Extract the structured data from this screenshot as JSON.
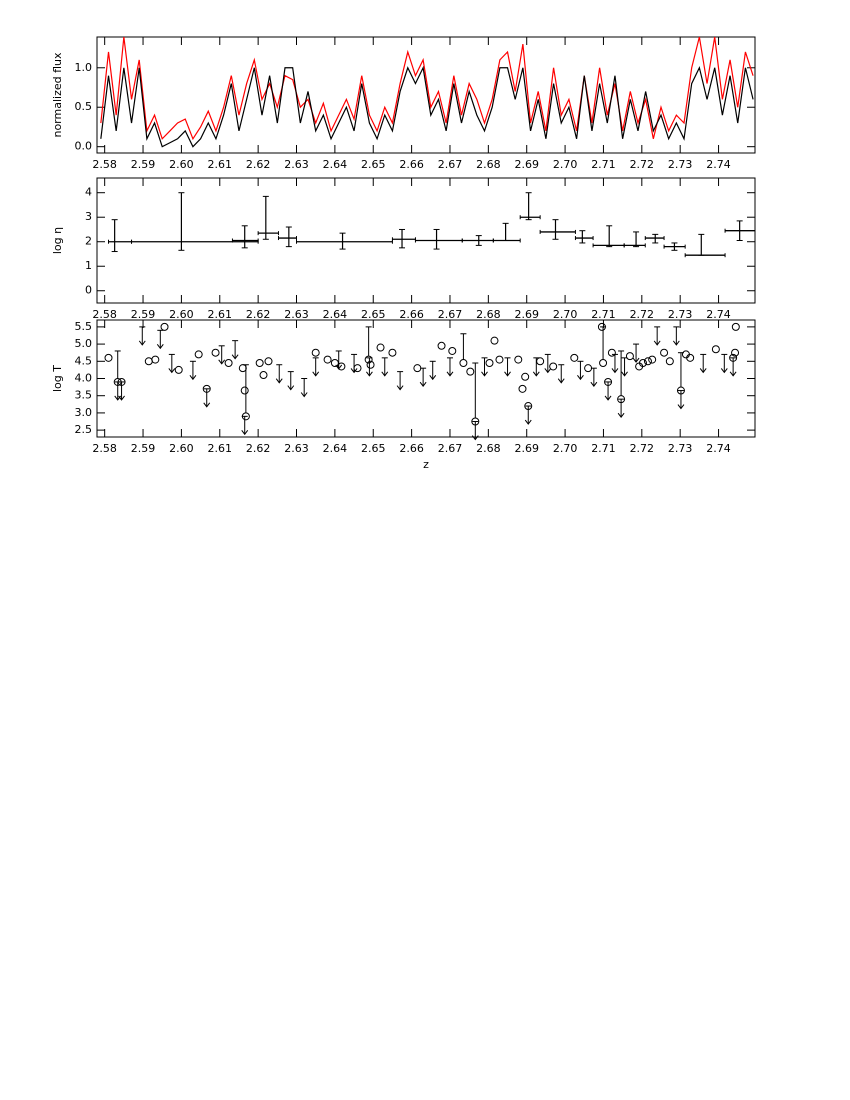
{
  "chart_data": [
    {
      "type": "line",
      "ylabel": "normalized flux",
      "x": [
        2.579,
        2.581,
        2.583,
        2.585,
        2.587,
        2.589,
        2.591,
        2.593,
        2.595,
        2.597,
        2.599,
        2.601,
        2.603,
        2.605,
        2.607,
        2.609,
        2.611,
        2.613,
        2.615,
        2.617,
        2.619,
        2.621,
        2.623,
        2.625,
        2.627,
        2.629,
        2.631,
        2.633,
        2.635,
        2.637,
        2.639,
        2.641,
        2.643,
        2.645,
        2.647,
        2.649,
        2.651,
        2.653,
        2.655,
        2.657,
        2.659,
        2.661,
        2.663,
        2.665,
        2.667,
        2.669,
        2.671,
        2.673,
        2.675,
        2.677,
        2.679,
        2.681,
        2.683,
        2.685,
        2.687,
        2.689,
        2.691,
        2.693,
        2.695,
        2.697,
        2.699,
        2.701,
        2.703,
        2.705,
        2.707,
        2.709,
        2.711,
        2.713,
        2.715,
        2.717,
        2.719,
        2.721,
        2.723,
        2.725,
        2.727,
        2.729,
        2.731,
        2.733,
        2.735,
        2.737,
        2.739,
        2.741,
        2.743,
        2.745,
        2.747,
        2.749
      ],
      "series": [
        {
          "color": "#ff0000",
          "values": [
            0.3,
            1.2,
            0.4,
            1.39,
            0.6,
            1.1,
            0.2,
            0.4,
            0.1,
            0.2,
            0.3,
            0.35,
            0.1,
            0.25,
            0.45,
            0.2,
            0.5,
            0.9,
            0.4,
            0.8,
            1.1,
            0.6,
            0.8,
            0.5,
            0.9,
            0.85,
            0.5,
            0.6,
            0.3,
            0.55,
            0.2,
            0.4,
            0.6,
            0.35,
            0.9,
            0.4,
            0.2,
            0.5,
            0.3,
            0.8,
            1.2,
            0.9,
            1.1,
            0.5,
            0.7,
            0.3,
            0.9,
            0.4,
            0.8,
            0.6,
            0.3,
            0.6,
            1.1,
            1.2,
            0.7,
            1.3,
            0.3,
            0.7,
            0.2,
            1.0,
            0.4,
            0.6,
            0.2,
            0.9,
            0.3,
            1.0,
            0.4,
            0.8,
            0.2,
            0.7,
            0.3,
            0.6,
            0.1,
            0.5,
            0.2,
            0.4,
            0.3,
            1.0,
            1.39,
            0.8,
            1.39,
            0.6,
            1.1,
            0.5,
            1.2,
            0.9
          ]
        },
        {
          "color": "#000000",
          "values": [
            0.1,
            0.9,
            0.2,
            1.0,
            0.3,
            1.0,
            0.1,
            0.3,
            0.0,
            0.05,
            0.1,
            0.2,
            0.0,
            0.1,
            0.3,
            0.1,
            0.4,
            0.8,
            0.2,
            0.6,
            1.0,
            0.4,
            0.9,
            0.3,
            1.0,
            1.0,
            0.3,
            0.7,
            0.2,
            0.4,
            0.1,
            0.3,
            0.5,
            0.2,
            0.8,
            0.3,
            0.1,
            0.4,
            0.2,
            0.7,
            1.0,
            0.8,
            1.0,
            0.4,
            0.6,
            0.2,
            0.8,
            0.3,
            0.7,
            0.4,
            0.2,
            0.5,
            1.0,
            1.0,
            0.6,
            1.0,
            0.2,
            0.6,
            0.1,
            0.8,
            0.3,
            0.5,
            0.1,
            0.9,
            0.2,
            0.8,
            0.3,
            0.9,
            0.1,
            0.6,
            0.2,
            0.7,
            0.2,
            0.4,
            0.1,
            0.3,
            0.1,
            0.8,
            1.0,
            0.6,
            1.0,
            0.4,
            0.9,
            0.3,
            1.0,
            0.6
          ]
        }
      ],
      "xlim": [
        2.578,
        2.7495
      ],
      "xticks": [
        2.58,
        2.59,
        {
          "value": 2.6,
          "label": "2.60"
        },
        2.61,
        2.62,
        2.63,
        2.64,
        2.65,
        2.66,
        2.67,
        2.68,
        2.69,
        {
          "value": 2.7,
          "label": "2.70"
        },
        2.71,
        2.72,
        2.73,
        2.74
      ],
      "ylim": [
        -0.08,
        1.39
      ],
      "yticks": [
        {
          "value": 0,
          "label": "0.0"
        },
        0.5,
        {
          "value": 1,
          "label": "1.0"
        }
      ]
    },
    {
      "type": "errorbar",
      "ylabel": "log η",
      "x": [
        2.5826,
        2.6,
        2.6165,
        2.622,
        2.628,
        2.642,
        2.6575,
        2.6665,
        2.6775,
        2.6845,
        2.6905,
        2.6975,
        2.7045,
        2.7115,
        2.7185,
        2.7235,
        2.7285,
        2.7355,
        2.7455
      ],
      "values": [
        2.0,
        2.0,
        2.05,
        2.35,
        2.15,
        2.0,
        2.1,
        2.05,
        2.05,
        2.05,
        3.0,
        2.4,
        2.15,
        1.85,
        1.85,
        2.15,
        1.8,
        1.45,
        2.45
      ],
      "x_lower": [
        2.581,
        2.587,
        2.6133,
        2.62,
        2.6253,
        2.63,
        2.655,
        2.661,
        2.6732,
        2.6813,
        2.6883,
        2.6935,
        2.7027,
        2.7073,
        2.7154,
        2.7209,
        2.7258,
        2.7313,
        2.7417
      ],
      "x_upper": [
        2.587,
        2.62,
        2.62,
        2.6253,
        2.63,
        2.655,
        2.661,
        2.6732,
        2.6813,
        2.6883,
        2.6935,
        2.7027,
        2.7073,
        2.7154,
        2.7209,
        2.7258,
        2.7313,
        2.7417,
        2.7495
      ],
      "y_lower": [
        1.6,
        1.65,
        1.75,
        2.1,
        1.8,
        1.7,
        1.75,
        1.7,
        1.85,
        2.05,
        2.9,
        2.1,
        1.95,
        1.8,
        1.8,
        1.95,
        1.65,
        1.45,
        2.05
      ],
      "y_upper": [
        2.9,
        4.0,
        2.65,
        3.85,
        2.6,
        2.35,
        2.5,
        2.5,
        2.25,
        2.75,
        4.0,
        2.9,
        2.45,
        2.65,
        2.4,
        2.3,
        1.95,
        2.3,
        2.85
      ],
      "xlim": [
        2.578,
        2.7495
      ],
      "xticks": [
        2.58,
        2.59,
        {
          "value": 2.6,
          "label": "2.60"
        },
        2.61,
        2.62,
        2.63,
        2.64,
        2.65,
        2.66,
        2.67,
        2.68,
        2.69,
        {
          "value": 2.7,
          "label": "2.70"
        },
        2.71,
        2.72,
        2.73,
        2.74
      ],
      "ylim": [
        -0.5,
        4.6
      ],
      "yticks": [
        0,
        1,
        2,
        3,
        4
      ]
    },
    {
      "type": "scatter",
      "ylabel": "log T",
      "xlabel": "z",
      "x": [
        2.581,
        2.5834,
        2.5844,
        2.5915,
        2.5932,
        2.5956,
        2.5993,
        2.6045,
        2.6066,
        2.6089,
        2.6123,
        2.616,
        2.6165,
        2.6168,
        2.6204,
        2.6214,
        2.6227,
        2.635,
        2.6381,
        2.64,
        2.6417,
        2.6459,
        2.6488,
        2.6493,
        2.6519,
        2.655,
        2.6615,
        2.6678,
        2.6706,
        2.6735,
        2.6753,
        2.6766,
        2.6803,
        2.6816,
        2.6829,
        2.6878,
        2.6889,
        2.6896,
        2.6904,
        2.6935,
        2.6969,
        2.7024,
        2.706,
        2.7096,
        2.7099,
        2.7112,
        2.7122,
        2.7146,
        2.7169,
        2.7193,
        2.7203,
        2.7216,
        2.7227,
        2.7258,
        2.7273,
        2.7302,
        2.7315,
        2.7326,
        2.7393,
        2.7438,
        2.7443,
        2.7445
      ],
      "values": [
        4.6,
        3.9,
        3.9,
        4.5,
        4.55,
        5.5,
        4.25,
        4.7,
        3.7,
        4.75,
        4.45,
        4.3,
        3.65,
        2.9,
        4.45,
        4.1,
        4.5,
        4.75,
        4.55,
        4.45,
        4.35,
        4.3,
        4.55,
        4.4,
        4.9,
        4.75,
        4.3,
        4.95,
        4.8,
        4.45,
        4.2,
        2.75,
        4.45,
        5.1,
        4.55,
        4.55,
        3.7,
        4.05,
        3.2,
        4.5,
        4.35,
        4.6,
        4.3,
        5.5,
        4.45,
        3.9,
        4.75,
        3.4,
        4.65,
        4.35,
        4.45,
        4.5,
        4.55,
        4.75,
        4.5,
        3.65,
        4.7,
        4.6,
        4.85,
        4.6,
        4.75,
        5.5
      ],
      "y_upper": [
        null,
        4.8,
        null,
        null,
        null,
        null,
        null,
        null,
        null,
        null,
        null,
        null,
        null,
        4.4,
        null,
        null,
        null,
        null,
        null,
        null,
        null,
        null,
        5.5,
        null,
        null,
        null,
        null,
        null,
        null,
        5.3,
        null,
        4.45,
        null,
        null,
        null,
        null,
        null,
        null,
        null,
        null,
        null,
        null,
        null,
        null,
        5.5,
        null,
        null,
        4.8,
        null,
        null,
        null,
        null,
        null,
        null,
        null,
        4.75,
        null,
        null,
        null,
        null,
        null,
        null
      ],
      "limits": {
        "x": [
          2.5834,
          2.5844,
          2.5898,
          2.5945,
          2.5975,
          2.603,
          2.6066,
          2.6105,
          2.614,
          2.6165,
          2.6255,
          2.6285,
          2.632,
          2.635,
          2.641,
          2.645,
          2.649,
          2.653,
          2.657,
          2.663,
          2.6655,
          2.67,
          2.6766,
          2.679,
          2.685,
          2.6904,
          2.6925,
          2.6955,
          2.699,
          2.704,
          2.7075,
          2.7112,
          2.713,
          2.7146,
          2.7155,
          2.7185,
          2.724,
          2.729,
          2.7302,
          2.736,
          2.7415,
          2.7438
        ],
        "values": [
          3.9,
          3.9,
          5.5,
          5.4,
          4.7,
          4.5,
          3.7,
          4.95,
          5.1,
          2.9,
          4.4,
          4.2,
          4.0,
          4.6,
          4.8,
          4.7,
          4.6,
          4.6,
          4.2,
          4.3,
          4.5,
          4.6,
          2.75,
          4.6,
          4.6,
          3.2,
          4.6,
          4.7,
          4.4,
          4.5,
          4.3,
          3.9,
          4.7,
          3.4,
          4.6,
          5.0,
          5.5,
          5.5,
          3.65,
          4.7,
          4.7,
          4.6
        ]
      },
      "xlim": [
        2.578,
        2.7495
      ],
      "xticks": [
        2.58,
        2.59,
        {
          "value": 2.6,
          "label": "2.60"
        },
        2.61,
        2.62,
        2.63,
        2.64,
        2.65,
        2.66,
        2.67,
        2.68,
        2.69,
        {
          "value": 2.7,
          "label": "2.70"
        },
        2.71,
        2.72,
        2.73,
        2.74
      ],
      "ylim": [
        2.3,
        5.7
      ],
      "yticks": [
        2.5,
        {
          "value": 3,
          "label": "3.0"
        },
        3.5,
        {
          "value": 4,
          "label": "4.0"
        },
        4.5,
        {
          "value": 5,
          "label": "5.0"
        },
        5.5
      ]
    }
  ]
}
